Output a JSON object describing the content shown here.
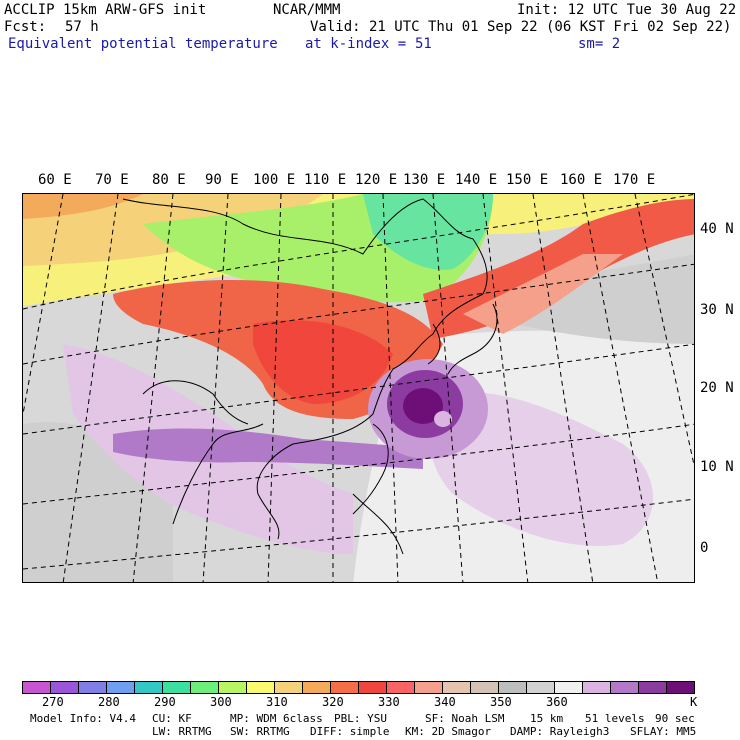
{
  "header": {
    "model": "ACCLIP 15km ARW-GFS init",
    "center": "NCAR/MMM",
    "init": "Init: 12 UTC Tue 30 Aug 22",
    "fcst_label": "Fcst:",
    "fcst_value": "57 h",
    "valid": "Valid: 21 UTC Thu 01 Sep 22 (06 KST Fri 02 Sep 22)",
    "field": "Equivalent potential temperature",
    "level": "at k-index =",
    "level_value": "51",
    "smooth": "sm= 2"
  },
  "axes": {
    "longitudes": [
      "60 E",
      "70 E",
      "80 E",
      "90 E",
      "100 E",
      "110 E",
      "120 E",
      "130 E",
      "140 E",
      "150 E",
      "160 E",
      "170 E"
    ],
    "latitudes": [
      "40 N",
      "30 N",
      "20 N",
      "10 N",
      "0"
    ]
  },
  "colorbar": {
    "colors": [
      "#c855d2",
      "#9b55d8",
      "#7f7fe6",
      "#6f9ff0",
      "#33c7c7",
      "#3be0a0",
      "#6cf07a",
      "#b8f560",
      "#fafa70",
      "#f5d27a",
      "#f5aa5a",
      "#f56e46",
      "#f0463c",
      "#fa6464",
      "#f5a08c",
      "#e6c3af",
      "#d2c3b4",
      "#bebebe",
      "#d2d2d2",
      "#f0f0f0",
      "#dcb4e1",
      "#b478c8",
      "#8c3ca0",
      "#6e0f78"
    ],
    "labels": [
      "270",
      "280",
      "290",
      "300",
      "310",
      "320",
      "330",
      "340",
      "350",
      "360"
    ],
    "unit": "K"
  },
  "footer": {
    "line1": [
      "Model Info: V4.4",
      "CU: KF",
      "MP: WDM 6class",
      "PBL: YSU",
      "SF: Noah LSM",
      "15 km",
      "51 levels",
      "90 sec"
    ],
    "line2": [
      "LW: RRTMG",
      "SW: RRTMG",
      "DIFF: simple",
      "KM: 2D Smagor",
      "DAMP: Rayleigh3",
      "SFLAY: MM5"
    ]
  }
}
